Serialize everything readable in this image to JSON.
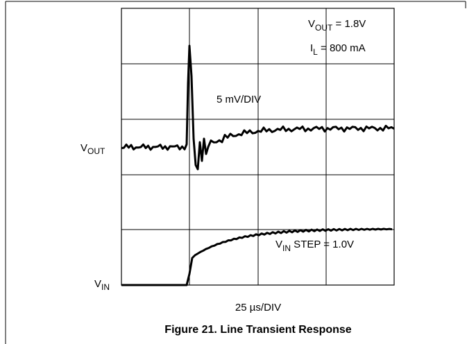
{
  "figure": {
    "vout_setting": {
      "main": "V",
      "sub": "OUT",
      "rest": " = 1.8V"
    },
    "load_setting": {
      "main": "I",
      "sub": "L",
      "rest": " = 800 mA"
    },
    "vout_scale": "5 mV/DIV",
    "vout_label": {
      "main": "V",
      "sub": "OUT"
    },
    "vin_step": {
      "main": "V",
      "sub": "IN",
      "rest": " STEP = 1.0V"
    },
    "vin_label": {
      "main": "V",
      "sub": "IN"
    },
    "time_scale": "25 µs/DIV",
    "caption": "Figure 21. Line Transient Response"
  }
}
